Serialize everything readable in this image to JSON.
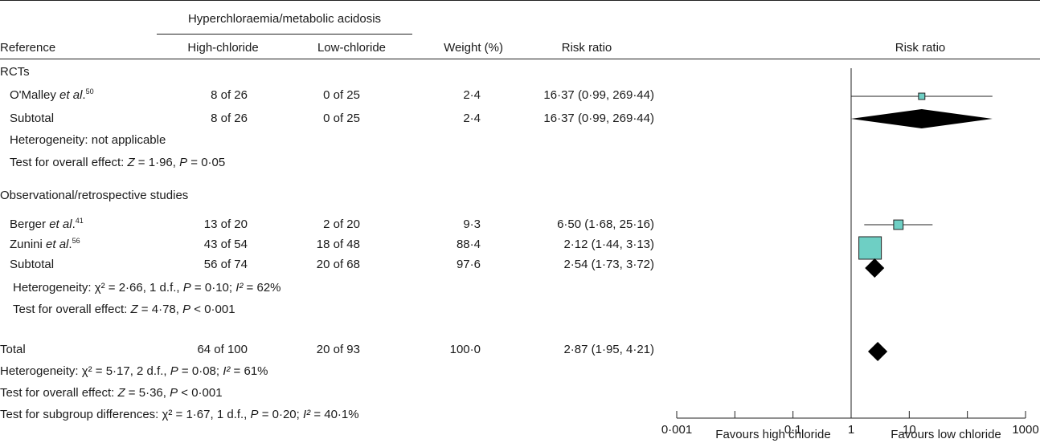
{
  "header": {
    "group_label": "Hyperchloraemia/metabolic acidosis",
    "col_reference": "Reference",
    "col_high": "High-chloride",
    "col_low": "Low-chloride",
    "col_weight": "Weight (%)",
    "col_rr": "Risk ratio",
    "col_plot": "Risk ratio"
  },
  "rows": {
    "rcts_heading": "RCTs",
    "omalley": {
      "name": "O'Malley ",
      "etal": "et al",
      "dot": ".",
      "ref": "50",
      "high": "8 of 26",
      "low": "0 of 25",
      "weight": "2·4",
      "rr": "16·37 (0·99, 269·44)"
    },
    "rct_subtotal": {
      "name": "Subtotal",
      "high": "8 of 26",
      "low": "0 of 25",
      "weight": "2·4",
      "rr": "16·37 (0·99, 269·44)"
    },
    "rct_het": "Heterogeneity: not applicable",
    "rct_test": {
      "pre": "Test for overall effect: ",
      "z": "Z",
      "zval": " = 1·96, ",
      "p": "P",
      "pval": " = 0·05"
    },
    "obs_heading": "Observational/retrospective studies",
    "berger": {
      "name": "Berger ",
      "etal": "et al",
      "dot": ".",
      "ref": "41",
      "high": "13 of 20",
      "low": "2 of 20",
      "weight": "9·3",
      "rr": "6·50 (1·68, 25·16)"
    },
    "zunini": {
      "name": "Zunini ",
      "etal": "et al",
      "dot": ".",
      "ref": "56",
      "high": "43 of 54",
      "low": "18 of 48",
      "weight": "88·4",
      "rr": "2·12 (1·44, 3·13)"
    },
    "obs_subtotal": {
      "name": "Subtotal",
      "high": "56 of 74",
      "low": "20 of 68",
      "weight": "97·6",
      "rr": "2·54 (1·73, 3·72)"
    },
    "obs_het": {
      "pre": "Heterogeneity: χ² = 2·66, 1 d.f., ",
      "p": "P",
      "pval": " = 0·10; ",
      "i": "I²",
      "ival": " = 62%"
    },
    "obs_test": {
      "pre": "Test for overall effect: ",
      "z": "Z",
      "zval": " = 4·78, ",
      "p": "P",
      "pval": " < 0·001"
    },
    "total": {
      "name": "Total",
      "high": "64 of 100",
      "low": "20 of 93",
      "weight": "100·0",
      "rr": "2·87 (1·95, 4·21)"
    },
    "tot_het": {
      "pre": "Heterogeneity: χ² = 5·17, 2 d.f., ",
      "p": "P",
      "pval": " = 0·08; ",
      "i": "I²",
      "ival": " = 61%"
    },
    "tot_test": {
      "pre": "Test for overall effect: ",
      "z": "Z",
      "zval": " = 5·36, ",
      "p": "P",
      "pval": " < 0·001"
    },
    "sub_test": {
      "pre": "Test for subgroup differences: χ² = 1·67, 1 d.f., ",
      "p": "P",
      "pval": " = 0·20; ",
      "i": "I²",
      "ival": " = 40·1%"
    }
  },
  "chart_data": {
    "type": "forest",
    "xscale": "log",
    "xlim": [
      0.001,
      1000
    ],
    "ticks": [
      {
        "value": 0.001,
        "label": "0·001"
      },
      {
        "value": 0.1,
        "label": "0·1"
      },
      {
        "value": 1,
        "label": "1"
      },
      {
        "value": 10,
        "label": "10"
      },
      {
        "value": 1000,
        "label": "1000"
      }
    ],
    "minor_ticks": [
      0.01,
      100
    ],
    "null_value": 1,
    "left_label": "Favours high chloride",
    "right_label": "Favours low chloride",
    "study_color": "#6ecfc4",
    "diamond_color": "#000000",
    "studies": [
      {
        "name": "O'Malley et al.",
        "rr": 16.37,
        "ci": [
          0.99,
          269.44
        ],
        "weight": 2.4
      },
      {
        "name": "Berger et al.",
        "rr": 6.5,
        "ci": [
          1.68,
          25.16
        ],
        "weight": 9.3
      },
      {
        "name": "Zunini et al.",
        "rr": 2.12,
        "ci": [
          1.44,
          3.13
        ],
        "weight": 88.4
      }
    ],
    "pooled": [
      {
        "name": "Subtotal (RCTs)",
        "rr": 16.37,
        "ci": [
          0.99,
          269.44
        ]
      },
      {
        "name": "Subtotal (Observational)",
        "rr": 2.54,
        "ci": [
          1.73,
          3.72
        ]
      },
      {
        "name": "Total",
        "rr": 2.87,
        "ci": [
          1.95,
          4.21
        ]
      }
    ]
  }
}
